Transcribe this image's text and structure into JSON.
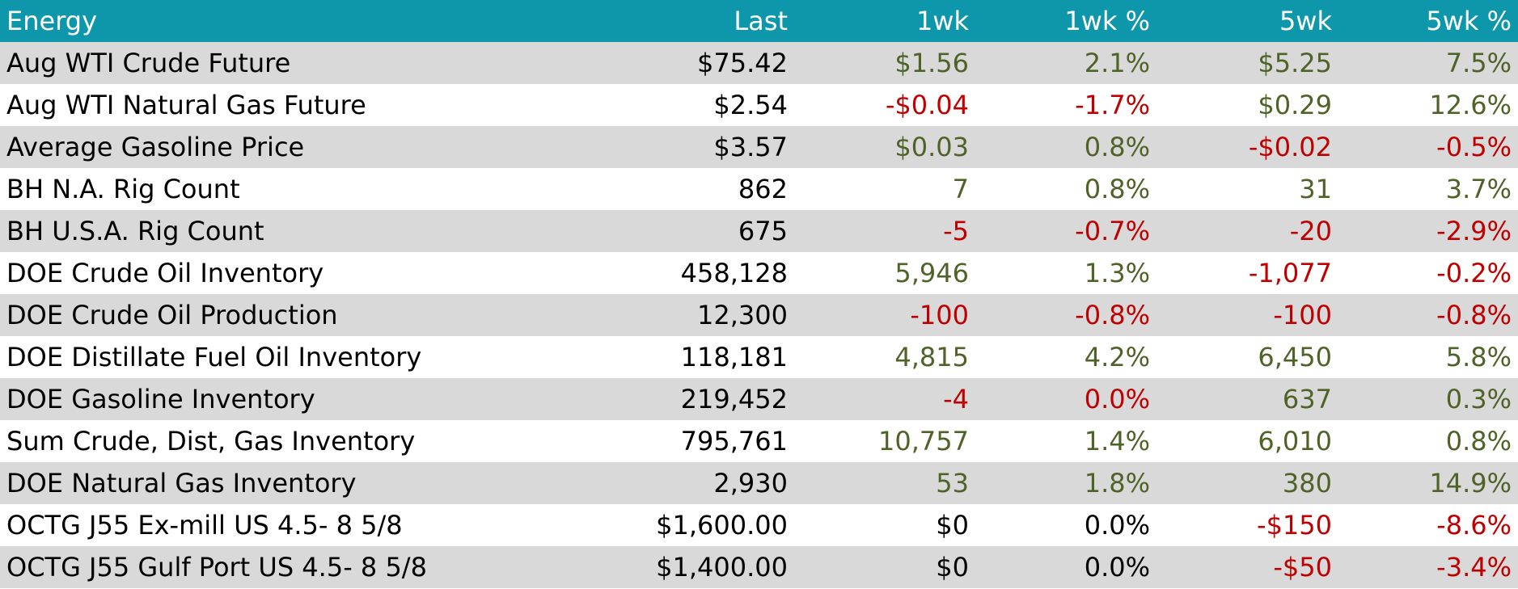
{
  "header": {
    "name": "Energy",
    "last": "Last",
    "wk1": "1wk",
    "wk1_pct": "1wk %",
    "wk5": "5wk",
    "wk5_pct": "5wk %"
  },
  "colors": {
    "header_bg": "#0e97aa",
    "header_text": "#ffffff",
    "row_shade": "#d9d9d9",
    "positive": "#4f6228",
    "negative": "#c00000"
  },
  "rows": [
    {
      "name": "Aug WTI Crude Future",
      "last": "$75.42",
      "wk1": "$1.56",
      "wk1_pct": "2.1%",
      "wk5": "$5.25",
      "wk5_pct": "7.5%",
      "s1": "pos",
      "s2": "pos",
      "s3": "pos",
      "s4": "pos"
    },
    {
      "name": "Aug WTI Natural Gas Future",
      "last": "$2.54",
      "wk1": "-$0.04",
      "wk1_pct": "-1.7%",
      "wk5": "$0.29",
      "wk5_pct": "12.6%",
      "s1": "neg",
      "s2": "neg",
      "s3": "pos",
      "s4": "pos"
    },
    {
      "name": "Average Gasoline Price",
      "last": "$3.57",
      "wk1": "$0.03",
      "wk1_pct": "0.8%",
      "wk5": "-$0.02",
      "wk5_pct": "-0.5%",
      "s1": "pos",
      "s2": "pos",
      "s3": "neg",
      "s4": "neg"
    },
    {
      "name": "BH N.A. Rig Count",
      "last": "862",
      "wk1": "7",
      "wk1_pct": "0.8%",
      "wk5": "31",
      "wk5_pct": "3.7%",
      "s1": "pos",
      "s2": "pos",
      "s3": "pos",
      "s4": "pos"
    },
    {
      "name": "BH U.S.A. Rig Count",
      "last": "675",
      "wk1": "-5",
      "wk1_pct": "-0.7%",
      "wk5": "-20",
      "wk5_pct": "-2.9%",
      "s1": "neg",
      "s2": "neg",
      "s3": "neg",
      "s4": "neg"
    },
    {
      "name": "DOE Crude Oil Inventory",
      "last": "458,128",
      "wk1": "5,946",
      "wk1_pct": "1.3%",
      "wk5": "-1,077",
      "wk5_pct": "-0.2%",
      "s1": "pos",
      "s2": "pos",
      "s3": "neg",
      "s4": "neg"
    },
    {
      "name": "DOE Crude Oil Production",
      "last": "12,300",
      "wk1": "-100",
      "wk1_pct": "-0.8%",
      "wk5": "-100",
      "wk5_pct": "-0.8%",
      "s1": "neg",
      "s2": "neg",
      "s3": "neg",
      "s4": "neg"
    },
    {
      "name": "DOE Distillate Fuel Oil Inventory",
      "last": "118,181",
      "wk1": "4,815",
      "wk1_pct": "4.2%",
      "wk5": "6,450",
      "wk5_pct": "5.8%",
      "s1": "pos",
      "s2": "pos",
      "s3": "pos",
      "s4": "pos"
    },
    {
      "name": "DOE Gasoline Inventory",
      "last": "219,452",
      "wk1": "-4",
      "wk1_pct": "0.0%",
      "wk5": "637",
      "wk5_pct": "0.3%",
      "s1": "neg",
      "s2": "neg",
      "s3": "pos",
      "s4": "pos"
    },
    {
      "name": "Sum Crude, Dist, Gas Inventory",
      "last": "795,761",
      "wk1": "10,757",
      "wk1_pct": "1.4%",
      "wk5": "6,010",
      "wk5_pct": "0.8%",
      "s1": "pos",
      "s2": "pos",
      "s3": "pos",
      "s4": "pos"
    },
    {
      "name": "DOE Natural Gas Inventory",
      "last": "2,930",
      "wk1": "53",
      "wk1_pct": "1.8%",
      "wk5": "380",
      "wk5_pct": "14.9%",
      "s1": "pos",
      "s2": "pos",
      "s3": "pos",
      "s4": "pos"
    },
    {
      "name": "OCTG J55 Ex-mill US 4.5- 8 5/8",
      "last": "$1,600.00",
      "wk1": "$0",
      "wk1_pct": "0.0%",
      "wk5": "-$150",
      "wk5_pct": "-8.6%",
      "s1": "flat",
      "s2": "flat",
      "s3": "neg",
      "s4": "neg"
    },
    {
      "name": "OCTG J55 Gulf Port US 4.5- 8 5/8",
      "last": "$1,400.00",
      "wk1": "$0",
      "wk1_pct": "0.0%",
      "wk5": "-$50",
      "wk5_pct": "-3.4%",
      "s1": "flat",
      "s2": "flat",
      "s3": "neg",
      "s4": "neg"
    }
  ]
}
